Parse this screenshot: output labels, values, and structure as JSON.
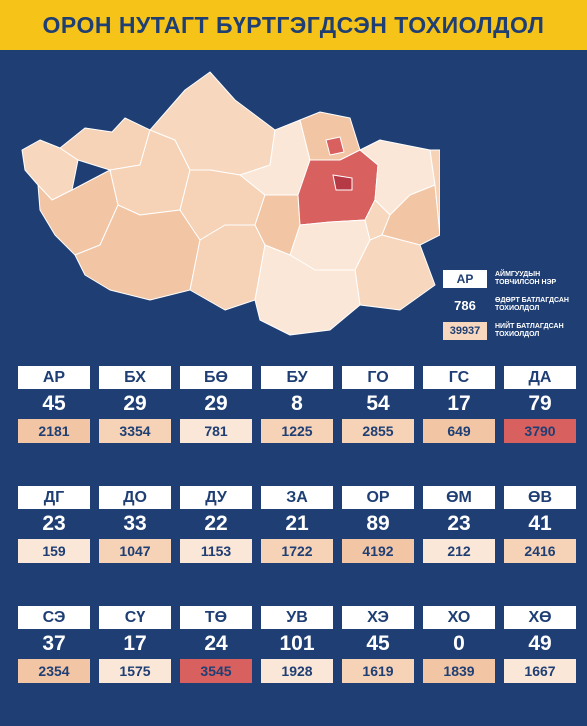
{
  "title": "ОРОН НУТАГТ БҮРТГЭГДСЭН ТОХИОЛДОЛ",
  "colors": {
    "background": "#1f3f74",
    "title_bar": "#f6c318",
    "level_1": "#fbe7d7",
    "level_2": "#f6d2b6",
    "level_3": "#f2c5a4",
    "level_4": "#d8605f",
    "capital": "#b53a46"
  },
  "legend": {
    "code_sample": "АР",
    "code_desc": "АЙМГУУДЫН ТОВЧИЛСОН НЭР",
    "cases_sample": "786",
    "cases_desc": "ӨДӨРТ БАТЛАГДСАН ТОХИОЛДОЛ",
    "total_sample": "39937",
    "total_desc": "НИЙТ БАТЛАГДСАН ТОХИОЛДОЛ"
  },
  "rows": [
    [
      {
        "code": "АР",
        "cases": "45",
        "total": "2181",
        "level": "l3"
      },
      {
        "code": "БХ",
        "cases": "29",
        "total": "3354",
        "level": "l2"
      },
      {
        "code": "БӨ",
        "cases": "29",
        "total": "781",
        "level": "l1"
      },
      {
        "code": "БУ",
        "cases": "8",
        "total": "1225",
        "level": "l2"
      },
      {
        "code": "ГО",
        "cases": "54",
        "total": "2855",
        "level": "l2"
      },
      {
        "code": "ГС",
        "cases": "17",
        "total": "649",
        "level": "l3"
      },
      {
        "code": "ДА",
        "cases": "79",
        "total": "3790",
        "level": "l4"
      }
    ],
    [
      {
        "code": "ДГ",
        "cases": "23",
        "total": "159",
        "level": "l1"
      },
      {
        "code": "ДО",
        "cases": "33",
        "total": "1047",
        "level": "l2"
      },
      {
        "code": "ДУ",
        "cases": "22",
        "total": "1153",
        "level": "l1"
      },
      {
        "code": "ЗА",
        "cases": "21",
        "total": "1722",
        "level": "l2"
      },
      {
        "code": "ОР",
        "cases": "89",
        "total": "4192",
        "level": "l3"
      },
      {
        "code": "ӨМ",
        "cases": "23",
        "total": "212",
        "level": "l1"
      },
      {
        "code": "ӨВ",
        "cases": "41",
        "total": "2416",
        "level": "l2"
      }
    ],
    [
      {
        "code": "СЭ",
        "cases": "37",
        "total": "2354",
        "level": "l3"
      },
      {
        "code": "СҮ",
        "cases": "17",
        "total": "1575",
        "level": "l1"
      },
      {
        "code": "ТӨ",
        "cases": "24",
        "total": "3545",
        "level": "l4"
      },
      {
        "code": "УВ",
        "cases": "101",
        "total": "1928",
        "level": "l1"
      },
      {
        "code": "ХЭ",
        "cases": "45",
        "total": "1619",
        "level": "l2"
      },
      {
        "code": "ХО",
        "cases": "0",
        "total": "1839",
        "level": "l3"
      },
      {
        "code": "ХӨ",
        "cases": "49",
        "total": "1667",
        "level": "l1"
      }
    ]
  ]
}
